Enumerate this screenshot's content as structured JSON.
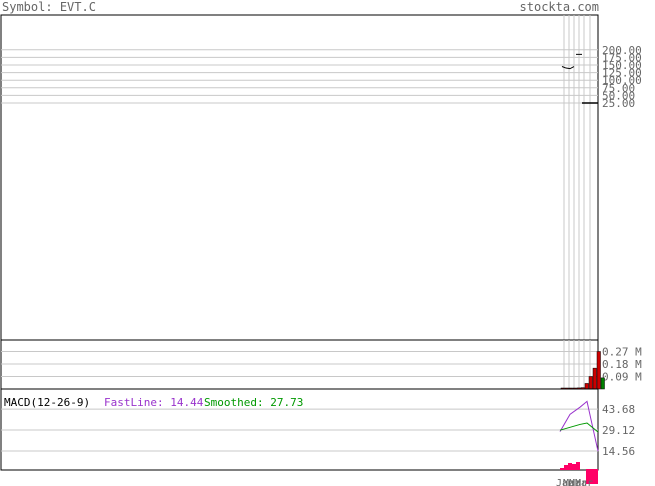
{
  "header": {
    "symbol_label": "Symbol:",
    "symbol": "EVT.C",
    "brand": "stockta.com"
  },
  "colors": {
    "grid": "#c8c8c8",
    "frame": "#000000",
    "volume_up": "#008000",
    "volume_down": "#cc0000",
    "fastline": "#9933cc",
    "smoothed": "#009900",
    "histogram": "#ff0066",
    "label": "#666666"
  },
  "chart_data": [
    {
      "type": "line",
      "panel": "price",
      "y_ticks": [
        {
          "value": 200,
          "label": "200.00"
        },
        {
          "value": 175,
          "label": "175.00"
        },
        {
          "value": 150,
          "label": "150.00"
        },
        {
          "value": 125,
          "label": "125.00"
        },
        {
          "value": 100,
          "label": "100.00"
        },
        {
          "value": 75,
          "label": "75.00"
        },
        {
          "value": 50,
          "label": "50.00"
        },
        {
          "value": 25,
          "label": "25.00"
        }
      ],
      "bars": [
        {
          "high": 145,
          "low": 145
        },
        {
          "high": 140,
          "low": 140
        },
        {
          "high": 138,
          "low": 138
        },
        {
          "high": 145,
          "low": 145
        },
        {
          "high": 185,
          "low": 185
        },
        {
          "high": 25,
          "low": 25
        }
      ],
      "last_price_value": 25
    },
    {
      "type": "bar",
      "panel": "volume",
      "y_ticks": [
        {
          "value": 0.27,
          "label": "0.27 M"
        },
        {
          "value": 0.18,
          "label": "0.18 M"
        },
        {
          "value": 0.09,
          "label": "0.09 M"
        }
      ],
      "values": [
        0.002,
        0.003,
        0.004,
        0.006,
        0.008,
        0.01,
        0.04,
        0.09,
        0.15,
        0.27,
        0.08
      ],
      "directions": [
        "down",
        "down",
        "down",
        "down",
        "down",
        "down",
        "down",
        "down",
        "down",
        "down",
        "up"
      ]
    },
    {
      "type": "line",
      "panel": "macd",
      "title": "MACD(12-26-9)",
      "fastline_label": "FastLine: 14.44",
      "smoothed_label": "Smoothed: 27.73",
      "y_ticks": [
        {
          "value": 43.68,
          "label": "43.68"
        },
        {
          "value": 29.12,
          "label": "29.12"
        },
        {
          "value": 14.56,
          "label": "14.56"
        }
      ],
      "series": [
        {
          "name": "FastLine",
          "values": [
            28,
            40,
            45,
            49,
            14.44
          ]
        },
        {
          "name": "Smoothed",
          "values": [
            29,
            31,
            33,
            34,
            27.73
          ]
        }
      ],
      "histogram": [
        2,
        5,
        7,
        6,
        8,
        -15
      ],
      "x_tick_labels": [
        "Jan",
        "Mar",
        "Mar",
        "Mar"
      ]
    }
  ]
}
